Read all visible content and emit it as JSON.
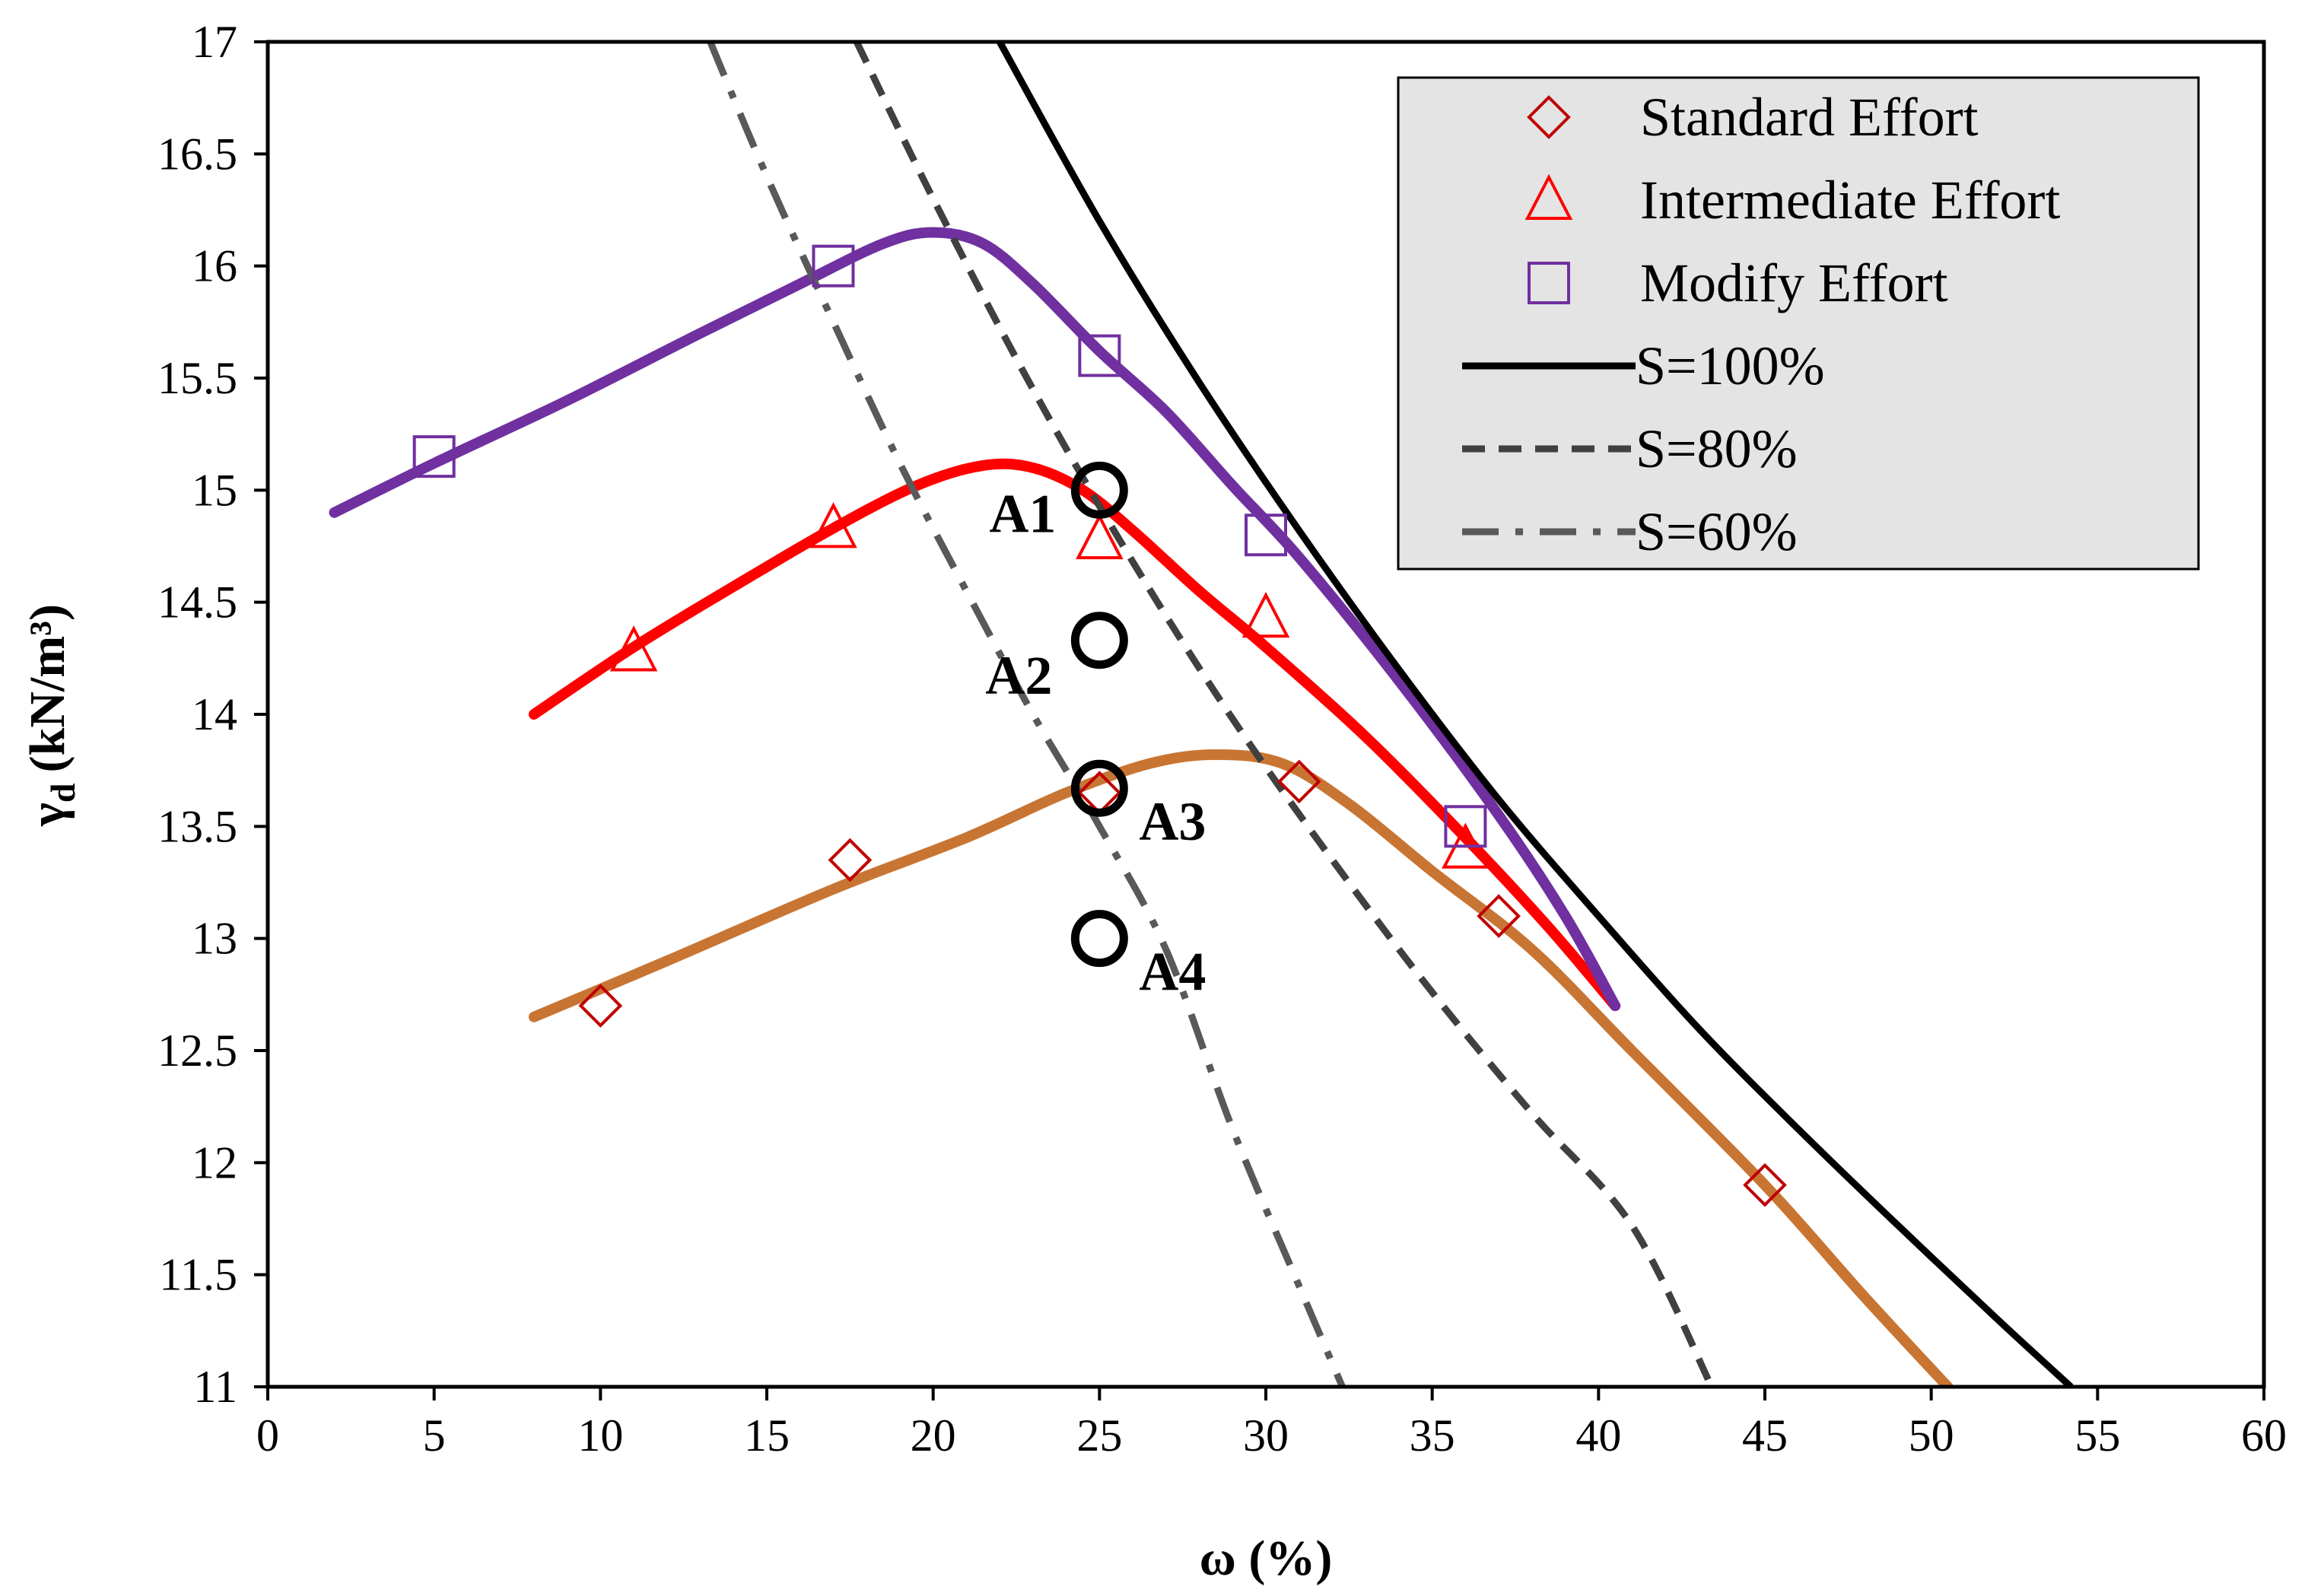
{
  "chart_data": {
    "type": "scatter",
    "title": "",
    "xlabel": "ω (%)",
    "ylabel_main": "γ",
    "ylabel_sub": "d",
    "ylabel_unit": "(kN/m³)",
    "xlim": [
      0,
      60
    ],
    "ylim": [
      11,
      17
    ],
    "xticks": [
      0,
      5,
      10,
      15,
      20,
      25,
      30,
      35,
      40,
      45,
      50,
      55,
      60
    ],
    "yticks": [
      11,
      11.5,
      12,
      12.5,
      13,
      13.5,
      14,
      14.5,
      15,
      15.5,
      16,
      16.5,
      17
    ],
    "grid": false,
    "legend_position": "top-right",
    "series": [
      {
        "name": "Standard Effort",
        "marker": "diamond",
        "color": "#c00000",
        "points": [
          [
            10,
            12.7
          ],
          [
            17.5,
            13.35
          ],
          [
            25,
            13.65
          ],
          [
            31,
            13.7
          ],
          [
            37,
            13.1
          ],
          [
            45,
            11.9
          ]
        ],
        "fit_color": "#c87533",
        "fit": [
          [
            8,
            12.65
          ],
          [
            12,
            12.9
          ],
          [
            17,
            13.22
          ],
          [
            21,
            13.45
          ],
          [
            24,
            13.65
          ],
          [
            26.5,
            13.78
          ],
          [
            28.5,
            13.82
          ],
          [
            30.5,
            13.78
          ],
          [
            32.5,
            13.6
          ],
          [
            35,
            13.3
          ],
          [
            38,
            12.95
          ],
          [
            41,
            12.5
          ],
          [
            45,
            11.9
          ],
          [
            48,
            11.4
          ],
          [
            50.5,
            11.0
          ]
        ]
      },
      {
        "name": "Intermediate Effort",
        "marker": "triangle",
        "color": "#ff0000",
        "points": [
          [
            11,
            14.28
          ],
          [
            17,
            14.83
          ],
          [
            25,
            14.78
          ],
          [
            30,
            14.43
          ],
          [
            36,
            13.4
          ]
        ],
        "fit_color": "#ff0000",
        "fit": [
          [
            8,
            14.0
          ],
          [
            11,
            14.3
          ],
          [
            14,
            14.57
          ],
          [
            17,
            14.83
          ],
          [
            19.5,
            15.02
          ],
          [
            21.5,
            15.11
          ],
          [
            23,
            15.1
          ],
          [
            24.5,
            15.0
          ],
          [
            26,
            14.82
          ],
          [
            28,
            14.55
          ],
          [
            30,
            14.3
          ],
          [
            33,
            13.9
          ],
          [
            36,
            13.45
          ],
          [
            38.5,
            13.05
          ],
          [
            40.5,
            12.7
          ]
        ]
      },
      {
        "name": "Modify Effort",
        "marker": "square",
        "color": "#7030a0",
        "points": [
          [
            5,
            15.15
          ],
          [
            17,
            16.0
          ],
          [
            25,
            15.6
          ],
          [
            30,
            14.8
          ],
          [
            36,
            13.5
          ]
        ],
        "fit_color": "#7030a0",
        "fit": [
          [
            2,
            14.9
          ],
          [
            5,
            15.12
          ],
          [
            9,
            15.4
          ],
          [
            13,
            15.7
          ],
          [
            16,
            15.92
          ],
          [
            18.5,
            16.1
          ],
          [
            20,
            16.15
          ],
          [
            21.5,
            16.1
          ],
          [
            23,
            15.92
          ],
          [
            25,
            15.62
          ],
          [
            27,
            15.35
          ],
          [
            29,
            15.02
          ],
          [
            31,
            14.7
          ],
          [
            34,
            14.15
          ],
          [
            37,
            13.55
          ],
          [
            39,
            13.1
          ],
          [
            40.5,
            12.7
          ]
        ]
      },
      {
        "name": "S=100%",
        "style": "solid",
        "color": "#000000",
        "points": [
          [
            22,
            17.0
          ],
          [
            25,
            16.2
          ],
          [
            28,
            15.48
          ],
          [
            31,
            14.82
          ],
          [
            34,
            14.2
          ],
          [
            37,
            13.62
          ],
          [
            40,
            13.1
          ],
          [
            43,
            12.6
          ],
          [
            46,
            12.15
          ],
          [
            49,
            11.72
          ],
          [
            52,
            11.3
          ],
          [
            54.2,
            11.0
          ]
        ]
      },
      {
        "name": "S=80%",
        "style": "dashed",
        "color": "#404040",
        "points": [
          [
            17.7,
            17.0
          ],
          [
            20,
            16.3
          ],
          [
            23,
            15.45
          ],
          [
            26,
            14.68
          ],
          [
            29,
            13.98
          ],
          [
            32,
            13.35
          ],
          [
            35,
            12.76
          ],
          [
            38,
            12.22
          ],
          [
            41,
            11.72
          ],
          [
            43.4,
            11.0
          ]
        ]
      },
      {
        "name": "S=60%",
        "style": "dashdot",
        "color": "#595959",
        "points": [
          [
            13.3,
            17.0
          ],
          [
            15,
            16.4
          ],
          [
            17,
            15.75
          ],
          [
            19,
            15.12
          ],
          [
            21,
            14.55
          ],
          [
            23,
            14.0
          ],
          [
            25,
            13.5
          ],
          [
            27,
            12.95
          ],
          [
            29,
            12.15
          ],
          [
            31,
            11.45
          ],
          [
            32.3,
            11.0
          ]
        ]
      }
    ],
    "annotations": [
      {
        "label": "A1",
        "x": 25,
        "y": 15.0
      },
      {
        "label": "A2",
        "x": 25,
        "y": 14.33
      },
      {
        "label": "A3",
        "x": 25,
        "y": 13.67
      },
      {
        "label": "A4",
        "x": 25,
        "y": 13.0
      }
    ]
  }
}
